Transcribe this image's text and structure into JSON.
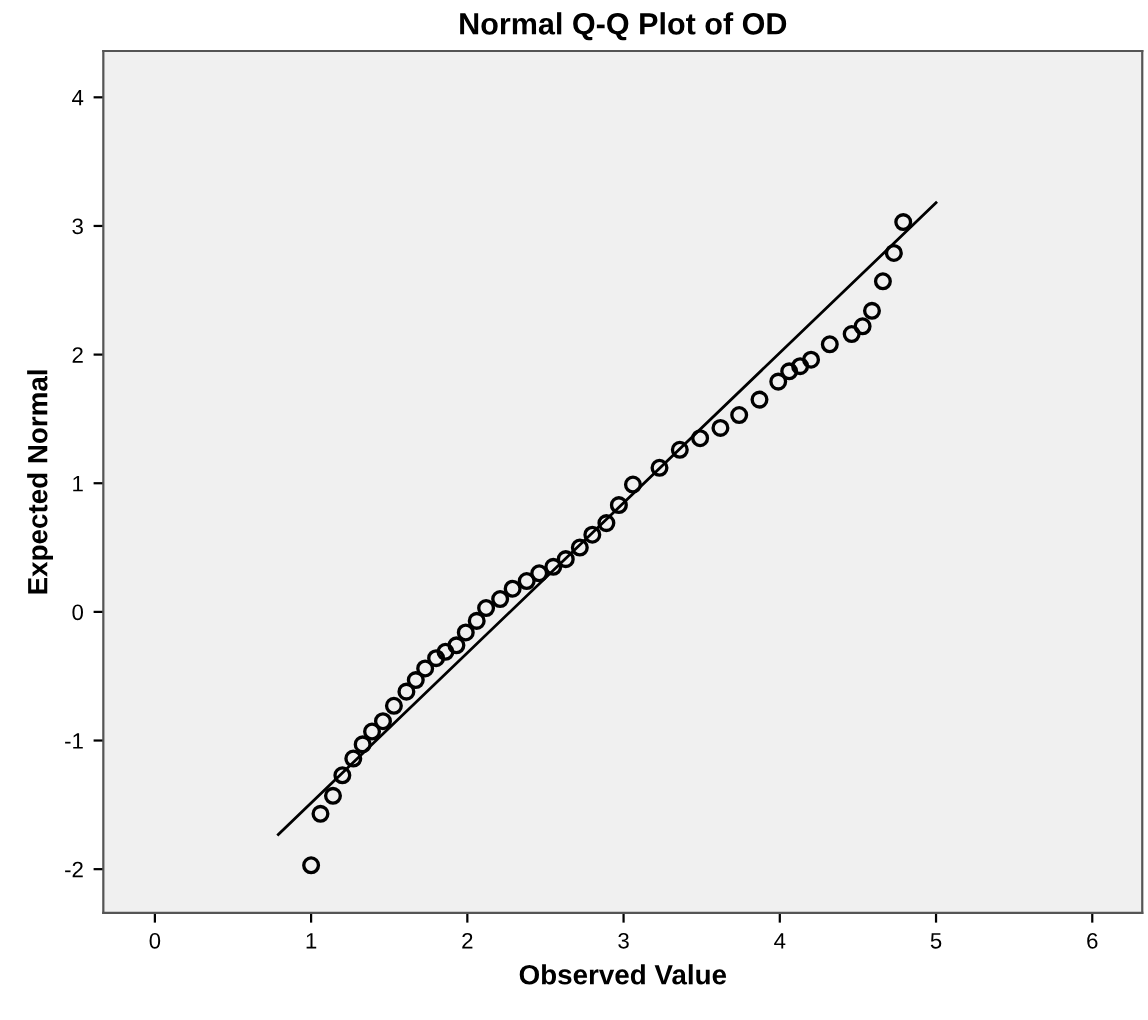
{
  "chart_data": {
    "type": "scatter",
    "title": "Normal Q-Q Plot of OD",
    "xlabel": "Observed Value",
    "ylabel": "Expected Normal",
    "x": [
      1.0,
      1.06,
      1.14,
      1.2,
      1.27,
      1.33,
      1.39,
      1.46,
      1.53,
      1.61,
      1.67,
      1.73,
      1.8,
      1.86,
      1.93,
      1.99,
      2.06,
      2.12,
      2.21,
      2.29,
      2.38,
      2.46,
      2.55,
      2.63,
      2.72,
      2.8,
      2.89,
      2.97,
      3.06,
      3.23,
      3.36,
      3.49,
      3.62,
      3.74,
      3.87,
      3.99,
      4.06,
      4.13,
      4.2,
      4.32,
      4.46,
      4.53,
      4.59,
      4.66,
      4.73,
      4.79
    ],
    "series": [
      {
        "color": "#000000",
        "marker": "circle",
        "values": [
          -1.97,
          -1.57,
          -1.43,
          -1.27,
          -1.14,
          -1.03,
          -0.93,
          -0.85,
          -0.73,
          -0.62,
          -0.53,
          -0.44,
          -0.36,
          -0.31,
          -0.26,
          -0.16,
          -0.07,
          0.03,
          0.1,
          0.18,
          0.24,
          0.3,
          0.35,
          0.41,
          0.5,
          0.6,
          0.69,
          0.83,
          0.99,
          1.12,
          1.26,
          1.35,
          1.43,
          1.53,
          1.65,
          1.79,
          1.87,
          1.91,
          1.96,
          2.08,
          2.16,
          2.22,
          2.34,
          2.57,
          2.79,
          3.03
        ]
      },
      {
        "type": "line",
        "color": "#000000",
        "marker": "none",
        "line_style": "solid",
        "x": [
          0.79,
          5.0
        ],
        "values": [
          -1.73,
          3.18
        ]
      }
    ],
    "xlim": [
      -0.33,
      6.32
    ],
    "ylim": [
      -2.34,
      4.36
    ],
    "xticks": [
      0,
      1,
      2,
      3,
      4,
      5,
      6
    ],
    "yticks": [
      -2,
      -1,
      0,
      1,
      2,
      3,
      4
    ],
    "grid": false,
    "legend": false
  }
}
